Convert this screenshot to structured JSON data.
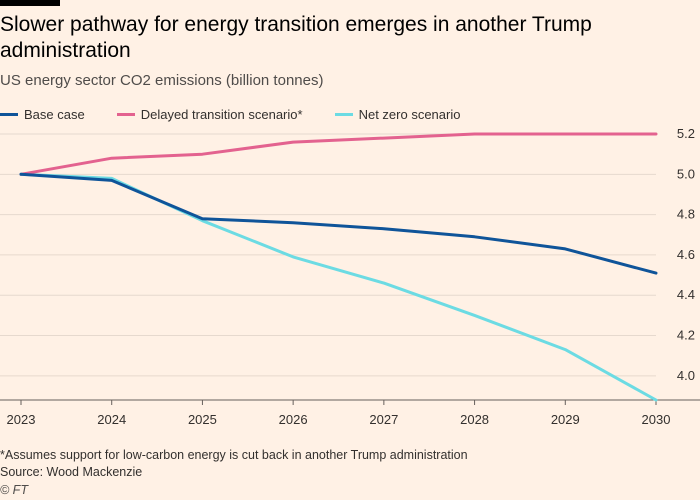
{
  "header": {
    "title": "Slower pathway for energy transition emerges in another Trump administration",
    "subtitle": "US energy sector CO2 emissions (billion tonnes)"
  },
  "footer": {
    "footnote": "*Assumes support for low-carbon energy is cut back in another Trump administration",
    "source": "Source: Wood Mackenzie",
    "credit": "© FT"
  },
  "chart_data": {
    "type": "line",
    "title": "Slower pathway for energy transition emerges in another Trump administration",
    "subtitle": "US energy sector CO2 emissions (billion tonnes)",
    "x": [
      2023,
      2024,
      2025,
      2026,
      2027,
      2028,
      2029,
      2030
    ],
    "xlabel": "",
    "ylabel": "",
    "ylim": [
      3.88,
      5.22
    ],
    "yticks": [
      "4.0",
      "4.2",
      "4.4",
      "4.6",
      "4.8",
      "5.0",
      "5.2"
    ],
    "xticks": [
      "2023",
      "2024",
      "2025",
      "2026",
      "2027",
      "2028",
      "2029",
      "2030"
    ],
    "y_axis_side": "right",
    "grid": true,
    "legend_position": "top",
    "series": [
      {
        "name": "Base case",
        "color": "#0f5499",
        "values": [
          5.0,
          4.97,
          4.78,
          4.76,
          4.73,
          4.69,
          4.63,
          4.51
        ]
      },
      {
        "name": "Delayed transition scenario*",
        "color": "#e3628f",
        "values": [
          5.0,
          5.08,
          5.1,
          5.16,
          5.18,
          5.2,
          5.2,
          5.2
        ]
      },
      {
        "name": "Net zero scenario",
        "color": "#6cdbe3",
        "values": [
          5.0,
          4.98,
          4.77,
          4.59,
          4.46,
          4.3,
          4.13,
          3.88
        ]
      }
    ]
  }
}
